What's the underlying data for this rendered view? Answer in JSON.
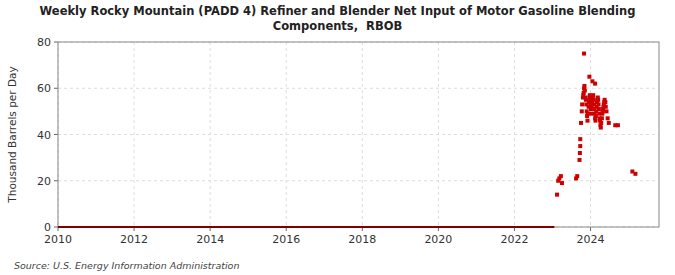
{
  "chart_data": {
    "type": "scatter",
    "title": "Weekly Rocky Mountain (PADD 4) Refiner and Blender Net Input of Motor Gasoline Blending\nComponents,  RBOB",
    "ylabel": "Thousand Barrels per Day",
    "source": "Source: U.S. Energy Information Administration",
    "xlim": [
      2010,
      2025.8
    ],
    "ylim": [
      0,
      80
    ],
    "xticks": [
      2010,
      2012,
      2014,
      2016,
      2018,
      2020,
      2022,
      2024
    ],
    "yticks": [
      0,
      20,
      40,
      60,
      80
    ],
    "grid": true,
    "series": [
      {
        "type": "line",
        "color": "#800000",
        "x": [
          2010,
          2023.05
        ],
        "values": [
          0,
          0
        ]
      },
      {
        "type": "scatter",
        "color": "#cc0000",
        "marker": "square",
        "x": [
          2023.12,
          2023.15,
          2023.18,
          2023.22,
          2023.25,
          2023.62,
          2023.65,
          2023.71,
          2023.72,
          2023.73,
          2023.73,
          2023.75,
          2023.77,
          2023.78,
          2023.8,
          2023.81,
          2023.82,
          2023.83,
          2023.84,
          2023.85,
          2023.86,
          2023.88,
          2023.89,
          2023.9,
          2023.91,
          2023.92,
          2023.93,
          2023.95,
          2023.96,
          2023.97,
          2023.98,
          2023.99,
          2024.0,
          2024.01,
          2024.02,
          2024.03,
          2024.04,
          2024.05,
          2024.06,
          2024.07,
          2024.08,
          2024.09,
          2024.1,
          2024.11,
          2024.12,
          2024.13,
          2024.14,
          2024.15,
          2024.16,
          2024.17,
          2024.18,
          2024.19,
          2024.2,
          2024.21,
          2024.22,
          2024.23,
          2024.24,
          2024.25,
          2024.26,
          2024.27,
          2024.28,
          2024.3,
          2024.31,
          2024.32,
          2024.33,
          2024.34,
          2024.35,
          2024.36,
          2024.37,
          2024.39,
          2024.4,
          2024.42,
          2024.45,
          2024.48,
          2024.65,
          2024.72,
          2025.1,
          2025.18
        ],
        "values": [
          14,
          20,
          21,
          22,
          19,
          21,
          22,
          29,
          32,
          35,
          38,
          45,
          50,
          53,
          56,
          57,
          58,
          60,
          61,
          59,
          56,
          55,
          53,
          50,
          48,
          46,
          49,
          52,
          54,
          56,
          57,
          55,
          53,
          51,
          49,
          52,
          54,
          55,
          56,
          57,
          55,
          53,
          51,
          49,
          47,
          46,
          48,
          50,
          52,
          54,
          55,
          56,
          55,
          53,
          51,
          49,
          47,
          46,
          44,
          43,
          45,
          47,
          49,
          50,
          51,
          52,
          53,
          54,
          55,
          54,
          52,
          50,
          47,
          45,
          44,
          44,
          24,
          23
        ]
      },
      {
        "type": "scatter",
        "color": "#cc0000",
        "marker": "square",
        "x": [
          2023.83,
          2023.97,
          2024.05,
          2024.12
        ],
        "values": [
          75,
          65,
          63,
          62
        ]
      }
    ]
  }
}
